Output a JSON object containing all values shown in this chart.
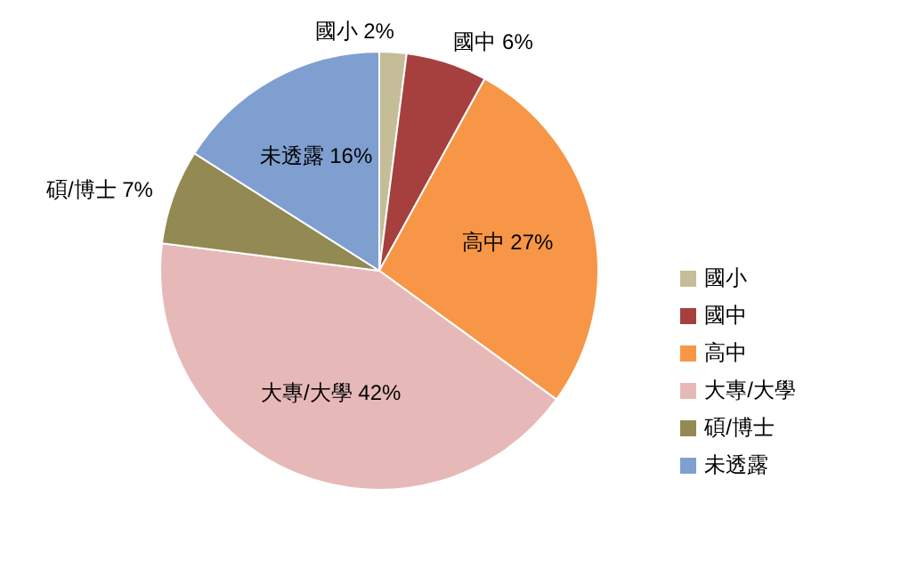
{
  "chart_data": {
    "type": "pie",
    "categories": [
      "國小",
      "國中",
      "高中",
      "大專/大學",
      "碩/博士",
      "未透露"
    ],
    "values": [
      2,
      6,
      27,
      42,
      7,
      16
    ],
    "colors": [
      "#c4bd97",
      "#a5403f",
      "#f79646",
      "#e6b9b8",
      "#938953",
      "#7f9fd0"
    ],
    "value_labels": [
      "國小 2%",
      "國中 6%",
      "高中 27%",
      "大專/大學 42%",
      "碩/博士 7%",
      "未透露 16%"
    ],
    "legend": "right"
  }
}
